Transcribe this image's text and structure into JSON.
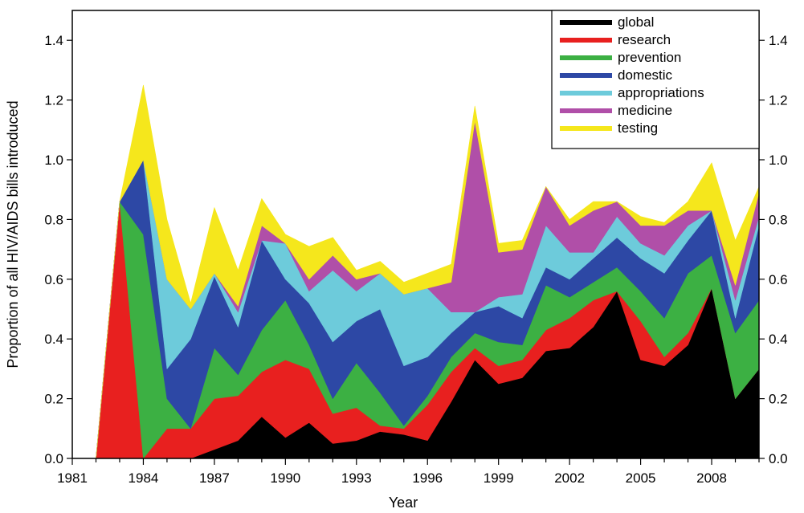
{
  "chart_data": {
    "type": "area",
    "stacked": true,
    "title": "",
    "xlabel": "Year",
    "ylabel": "Proportion of all HIV/AIDS bills introduced",
    "xlim": [
      1981,
      2010
    ],
    "ylim": [
      0,
      1.5
    ],
    "x_ticks": [
      1981,
      1984,
      1987,
      1990,
      1993,
      1996,
      1999,
      2002,
      2005,
      2008
    ],
    "y_ticks": [
      0.0,
      0.2,
      0.4,
      0.6,
      0.8,
      1.0,
      1.2,
      1.4
    ],
    "y_tick_labels": [
      "0.0",
      "0.2",
      "0.4",
      "0.6",
      "0.8",
      "1.0",
      "1.2",
      "1.4"
    ],
    "secondary_y_axis": true,
    "grid": false,
    "legend_position": "top-right",
    "x": [
      1982,
      1983,
      1984,
      1985,
      1986,
      1987,
      1988,
      1989,
      1990,
      1991,
      1992,
      1993,
      1994,
      1995,
      1996,
      1997,
      1998,
      1999,
      2000,
      2001,
      2002,
      2003,
      2004,
      2005,
      2006,
      2007,
      2008,
      2009,
      2010
    ],
    "series": [
      {
        "name": "global",
        "color": "#000000",
        "values": [
          0,
          0,
          0,
          0,
          0,
          0.03,
          0.06,
          0.14,
          0.07,
          0.12,
          0.05,
          0.06,
          0.09,
          0.08,
          0.06,
          0.19,
          0.33,
          0.25,
          0.27,
          0.36,
          0.37,
          0.44,
          0.56,
          0.33,
          0.31,
          0.38,
          0.57,
          0.2,
          0.3
        ]
      },
      {
        "name": "research",
        "color": "#e8201f",
        "values": [
          0,
          0.86,
          0,
          0.1,
          0.1,
          0.17,
          0.15,
          0.15,
          0.26,
          0.18,
          0.1,
          0.11,
          0.02,
          0.02,
          0.12,
          0.1,
          0.04,
          0.06,
          0.06,
          0.07,
          0.1,
          0.09,
          0,
          0.13,
          0.03,
          0.04,
          0,
          0,
          0
        ]
      },
      {
        "name": "prevention",
        "color": "#3cb043",
        "values": [
          0,
          0,
          0.75,
          0.1,
          0,
          0.17,
          0.07,
          0.14,
          0.2,
          0.08,
          0.05,
          0.15,
          0.11,
          0.01,
          0.03,
          0.05,
          0.05,
          0.08,
          0.05,
          0.15,
          0.07,
          0.06,
          0.08,
          0.1,
          0.13,
          0.2,
          0.11,
          0.22,
          0.23
        ]
      },
      {
        "name": "domestic",
        "color": "#2d48a5",
        "values": [
          0,
          0,
          0.25,
          0.1,
          0.3,
          0.24,
          0.16,
          0.3,
          0.07,
          0.14,
          0.19,
          0.14,
          0.28,
          0.2,
          0.13,
          0.08,
          0.07,
          0.12,
          0.09,
          0.06,
          0.06,
          0.08,
          0.1,
          0.11,
          0.15,
          0.11,
          0.15,
          0.05,
          0.25
        ]
      },
      {
        "name": "appropriations",
        "color": "#6dcbdb",
        "values": [
          0,
          0,
          0,
          0.3,
          0.1,
          0.01,
          0.05,
          0,
          0.12,
          0.04,
          0.24,
          0.1,
          0.12,
          0.24,
          0.23,
          0.07,
          0,
          0.03,
          0.08,
          0.14,
          0.09,
          0.02,
          0.07,
          0.05,
          0.06,
          0.05,
          0,
          0.06,
          0.03
        ]
      },
      {
        "name": "medicine",
        "color": "#b04fa8",
        "values": [
          0,
          0,
          0,
          0,
          0,
          0,
          0.02,
          0.05,
          0,
          0.04,
          0.05,
          0.04,
          0,
          0,
          0,
          0.1,
          0.64,
          0.15,
          0.15,
          0.13,
          0.09,
          0.14,
          0.05,
          0.06,
          0.1,
          0.05,
          0,
          0.05,
          0.08
        ]
      },
      {
        "name": "testing",
        "color": "#f5e71c",
        "values": [
          0,
          0,
          0.25,
          0.2,
          0.02,
          0.22,
          0.12,
          0.09,
          0.03,
          0.11,
          0.06,
          0.03,
          0.04,
          0.04,
          0.05,
          0.06,
          0.05,
          0.03,
          0.03,
          0,
          0.02,
          0.03,
          0,
          0.03,
          0.01,
          0.03,
          0.16,
          0.15,
          0.02
        ]
      }
    ],
    "legend": [
      "global",
      "research",
      "prevention",
      "domestic",
      "appropriations",
      "medicine",
      "testing"
    ]
  }
}
